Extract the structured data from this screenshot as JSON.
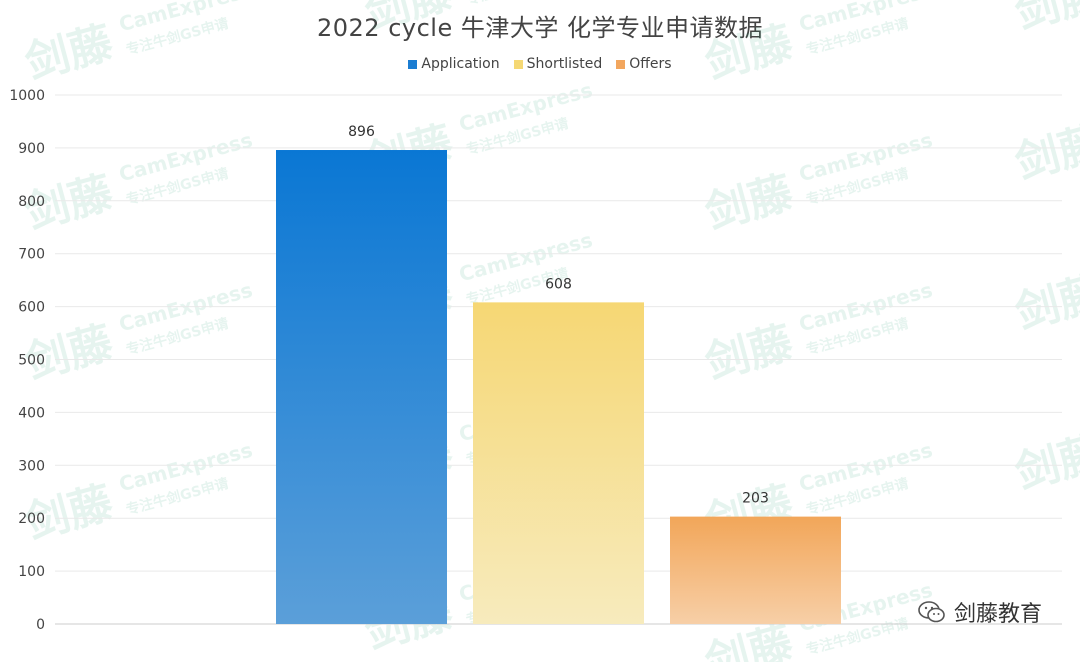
{
  "chart_data": {
    "type": "bar",
    "title": "2022 cycle 牛津大学 化学专业申请数据",
    "categories": [
      "Application",
      "Shortlisted",
      "Offers"
    ],
    "values": [
      896,
      608,
      203
    ],
    "ylim": [
      0,
      1000
    ],
    "yticks": [
      0,
      100,
      200,
      300,
      400,
      500,
      600,
      700,
      800,
      900,
      1000
    ],
    "xlabel": "",
    "ylabel": "",
    "grid": true,
    "legend_position": "top-center",
    "colors": [
      {
        "top": "#0a77d4",
        "bottom": "#5b9fd9"
      },
      {
        "top": "#f6d774",
        "bottom": "#f7ebbd"
      },
      {
        "top": "#f2a659",
        "bottom": "#f7cfa7"
      }
    ],
    "legend_colors": [
      "#1b7dd2",
      "#f5d874",
      "#f2a65e"
    ]
  },
  "brand": {
    "icon": "wechat-icon",
    "text": "剑藤教育"
  },
  "watermark": {
    "text_en": "CamExpress",
    "text_cn": "剑藤",
    "sub": "专注牛剑GS申请"
  }
}
